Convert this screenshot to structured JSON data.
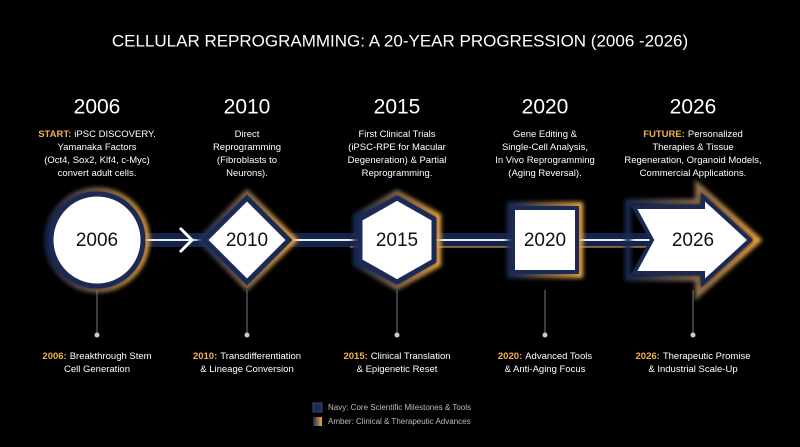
{
  "title": "CELLULAR REPROGRAMMING: A 20-YEAR PROGRESSION (2006 -2026)",
  "milestones": [
    {
      "year": "2006",
      "desc_bold": "START:",
      "desc": [
        "iPSC DISCOVERY.",
        "Yamanaka Factors",
        "(Oct4, Sox2, Klf4, c-Myc)",
        "convert adult cells."
      ],
      "caption_bold": "2006:",
      "caption": [
        "Breakthrough Stem",
        "Cell Generation"
      ]
    },
    {
      "year": "2010",
      "desc": [
        "Direct",
        "Reprogramming",
        "(Fibroblasts to",
        "Neurons)."
      ],
      "caption_bold": "2010:",
      "caption": [
        "Transdifferentiation",
        "& Lineage Conversion"
      ]
    },
    {
      "year": "2015",
      "desc": [
        "First Clinical Trials",
        "(iPSC-RPE for Macular",
        "Degeneration) & Partial",
        "Reprogramming."
      ],
      "caption_bold": "2015:",
      "caption": [
        "Clinical Translation",
        "& Epigenetic Reset"
      ]
    },
    {
      "year": "2020",
      "desc": [
        "Gene Editing &",
        "Single-Cell Analysis,",
        "In Vivo Reprogramming",
        "(Aging Reversal)."
      ],
      "caption_bold": "2020:",
      "caption": [
        "Advanced Tools",
        "& Anti-Aging Focus"
      ]
    },
    {
      "year": "2026",
      "desc_bold": "FUTURE:",
      "desc": [
        "Personalized",
        "Therapies & Tissue",
        "Regeneration, Organoid Models,",
        "Commercial Applications."
      ],
      "caption_bold": "2026:",
      "caption": [
        "Therapeutic Promise",
        "& Industrial Scale-Up"
      ]
    }
  ],
  "legend": [
    "Navy: Core Scientific Milestones & Tools",
    "Amber: Clinical & Therapeutic Advances"
  ]
}
